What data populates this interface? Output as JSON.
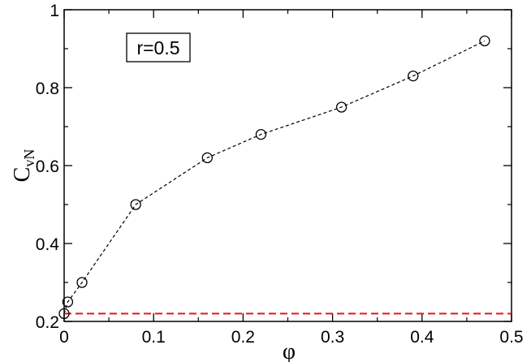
{
  "chart_data": {
    "type": "scatter",
    "xlabel": "φ",
    "ylabel_main": "C",
    "ylabel_sub": "vN",
    "xlim": [
      0,
      0.5
    ],
    "ylim": [
      0.2,
      1.0
    ],
    "x_ticks": [
      0,
      0.1,
      0.2,
      0.3,
      0.4,
      0.5
    ],
    "x_tick_labels": [
      "0",
      "0.1",
      "0.2",
      "0.3",
      "0.4",
      "0.5"
    ],
    "y_ticks": [
      0.2,
      0.4,
      0.6,
      0.8,
      1.0
    ],
    "y_tick_labels": [
      "0.2",
      "0.4",
      "0.6",
      "0.8",
      "1"
    ],
    "annotation": "r=0.5",
    "grid": false,
    "series": [
      {
        "style": "black dashed line with open circle markers",
        "color": "#000000",
        "x": [
          0.0,
          0.004,
          0.02,
          0.08,
          0.16,
          0.22,
          0.31,
          0.39,
          0.47
        ],
        "y": [
          0.22,
          0.25,
          0.3,
          0.5,
          0.62,
          0.68,
          0.75,
          0.83,
          0.92
        ]
      }
    ],
    "reference_line": {
      "style": "red dashed horizontal line",
      "color": "#e8141c",
      "y": 0.22
    }
  }
}
